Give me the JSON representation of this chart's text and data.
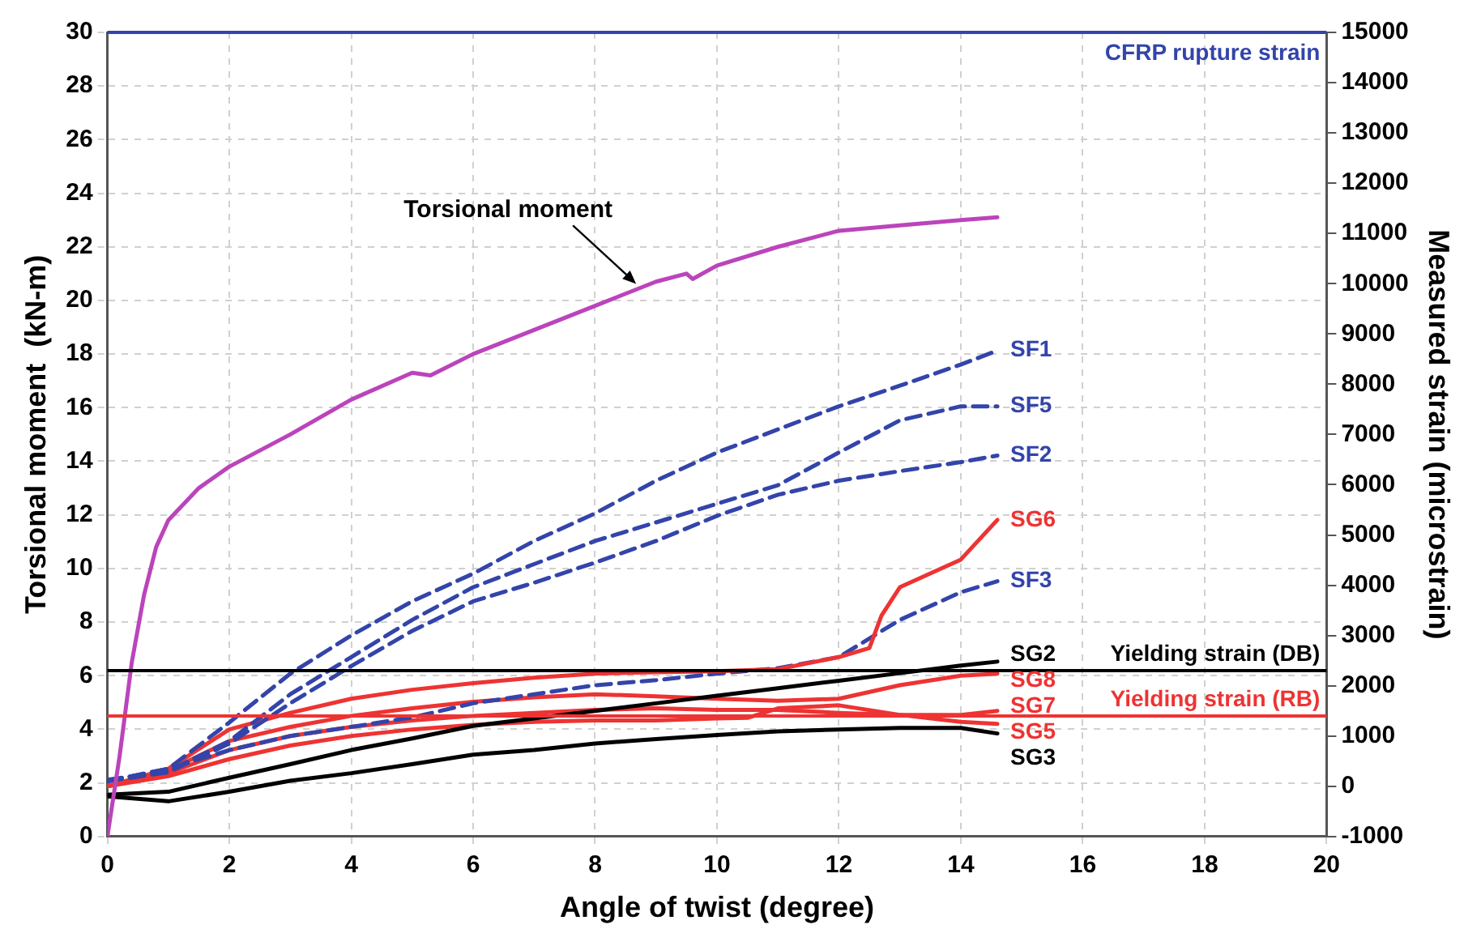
{
  "chart_data": {
    "type": "line",
    "xlabel": "Angle of twist (degree)",
    "ylabel": "Torsional moment  (kN-m)",
    "y2label": "Measured strain (microstrain)",
    "xlim": [
      0,
      20
    ],
    "xticks": [
      0,
      2,
      4,
      6,
      8,
      10,
      12,
      14,
      16,
      18,
      20
    ],
    "ylim": [
      0,
      30
    ],
    "yticks": [
      0,
      2,
      4,
      6,
      8,
      10,
      12,
      14,
      16,
      18,
      20,
      22,
      24,
      26,
      28,
      30
    ],
    "y2lim": [
      -1000,
      15000
    ],
    "y2ticks": [
      -1000,
      0,
      1000,
      2000,
      3000,
      4000,
      5000,
      6000,
      7000,
      8000,
      9000,
      10000,
      11000,
      12000,
      13000,
      14000,
      15000
    ],
    "grid": true,
    "legend": false,
    "marker": "none",
    "series": [
      {
        "color": "#bb44bb",
        "line_style": "solid",
        "x": [
          0,
          0.2,
          0.4,
          0.6,
          0.8,
          1,
          1.5,
          2,
          3,
          4,
          5,
          5.3,
          6,
          7,
          8,
          9,
          9.5,
          9.6,
          10,
          11,
          12,
          13,
          14,
          14.6
        ],
        "values": [
          0,
          3,
          6.5,
          9,
          10.8,
          11.8,
          13,
          13.8,
          15,
          16.3,
          17.3,
          17.2,
          18,
          18.9,
          19.8,
          20.7,
          21,
          20.8,
          21.3,
          22,
          22.6,
          22.8,
          23,
          23.1
        ]
      },
      {
        "name": "SF1",
        "color": "#3344aa",
        "line_style": "dashed",
        "axis": "y2",
        "x": [
          0,
          1,
          2,
          3,
          4,
          5,
          6,
          7,
          8,
          9,
          10,
          11,
          12,
          13,
          14,
          14.6
        ],
        "values": [
          100,
          350,
          1270,
          2240,
          3000,
          3680,
          4230,
          4880,
          5430,
          6080,
          6640,
          7100,
          7560,
          7970,
          8390,
          8670
        ]
      },
      {
        "name": "SF5",
        "color": "#3344aa",
        "line_style": "dashed",
        "axis": "y2",
        "x": [
          0,
          1,
          2,
          3,
          4,
          5,
          6,
          7,
          8,
          9,
          10,
          11,
          12,
          13,
          14,
          14.6
        ],
        "values": [
          130,
          300,
          900,
          1830,
          2570,
          3310,
          3960,
          4420,
          4880,
          5250,
          5620,
          5990,
          6640,
          7280,
          7560,
          7560
        ]
      },
      {
        "name": "SF2",
        "color": "#3344aa",
        "line_style": "dashed",
        "axis": "y2",
        "x": [
          0,
          1,
          2,
          3,
          4,
          5,
          6,
          7,
          8,
          9,
          10,
          11,
          12,
          13,
          14,
          14.6
        ],
        "values": [
          100,
          280,
          850,
          1650,
          2390,
          3090,
          3680,
          4050,
          4450,
          4880,
          5380,
          5800,
          6080,
          6270,
          6450,
          6580
        ]
      },
      {
        "name": "SG6",
        "color": "#ee3333",
        "line_style": "solid",
        "axis": "y2",
        "x": [
          0,
          1,
          2,
          3,
          4,
          5,
          6,
          7,
          8,
          9,
          10,
          11,
          12,
          12.5,
          12.7,
          13,
          14,
          14.6
        ],
        "values": [
          0,
          350,
          1130,
          1460,
          1740,
          1920,
          2050,
          2160,
          2240,
          2270,
          2290,
          2330,
          2570,
          2750,
          3400,
          3960,
          4510,
          5300
        ]
      },
      {
        "name": "SF3",
        "color": "#3344aa",
        "line_style": "dashed",
        "axis": "y2",
        "x": [
          0,
          1,
          2,
          3,
          4,
          5,
          6,
          7,
          8,
          9,
          10,
          11,
          12,
          13,
          14,
          14.6
        ],
        "values": [
          100,
          350,
          720,
          1000,
          1180,
          1370,
          1650,
          1830,
          2010,
          2110,
          2240,
          2350,
          2570,
          3310,
          3860,
          4080
        ]
      },
      {
        "name": "SG2",
        "color": "#000000",
        "line_style": "solid",
        "axis": "y2",
        "x": [
          0,
          1,
          2,
          3,
          4,
          5,
          6,
          7,
          8,
          9,
          10,
          11,
          12,
          13,
          14,
          14.6
        ],
        "values": [
          -170,
          -110,
          170,
          440,
          720,
          950,
          1200,
          1350,
          1500,
          1650,
          1800,
          1950,
          2100,
          2250,
          2400,
          2480
        ]
      },
      {
        "name": "SG8",
        "color": "#ee3333",
        "line_style": "solid",
        "axis": "y2",
        "x": [
          0,
          1,
          2,
          3,
          4,
          5,
          6,
          7,
          8,
          9,
          10,
          11,
          12,
          13,
          14,
          14.6
        ],
        "values": [
          0,
          310,
          900,
          1180,
          1400,
          1550,
          1680,
          1770,
          1830,
          1790,
          1740,
          1700,
          1740,
          2010,
          2200,
          2240
        ]
      },
      {
        "name": "SG7",
        "color": "#ee3333",
        "line_style": "solid",
        "axis": "y2",
        "x": [
          0,
          1,
          2,
          3,
          4,
          5,
          6,
          7,
          8,
          9,
          10,
          11,
          12,
          13,
          14,
          14.6
        ],
        "values": [
          0,
          260,
          720,
          1000,
          1180,
          1310,
          1400,
          1460,
          1520,
          1550,
          1520,
          1520,
          1460,
          1420,
          1420,
          1500
        ]
      },
      {
        "name": "SG5",
        "color": "#ee3333",
        "line_style": "solid",
        "axis": "y2",
        "x": [
          0,
          1,
          2,
          3,
          4,
          5,
          6,
          7,
          8,
          9,
          10,
          10.5,
          11,
          12,
          13,
          14,
          14.6
        ],
        "values": [
          0,
          200,
          540,
          810,
          1000,
          1130,
          1220,
          1280,
          1310,
          1310,
          1350,
          1360,
          1550,
          1610,
          1420,
          1280,
          1240
        ]
      },
      {
        "name": "SG3",
        "color": "#000000",
        "line_style": "solid",
        "axis": "y2",
        "x": [
          0,
          1,
          2,
          3,
          4,
          5,
          6,
          7,
          8,
          9,
          10,
          11,
          12,
          13,
          14,
          14.6
        ],
        "values": [
          -200,
          -300,
          -110,
          110,
          260,
          440,
          630,
          720,
          850,
          940,
          1020,
          1090,
          1130,
          1160,
          1160,
          1050
        ]
      }
    ],
    "ref_lines": [
      {
        "axis": "y2",
        "value": 15000,
        "label": "CFRP rupture strain",
        "color": "#3344aa"
      },
      {
        "axis": "y2",
        "value": 2300,
        "label": "Yielding strain (DB)",
        "color": "#000000"
      },
      {
        "axis": "y2",
        "value": 1400,
        "label": "Yielding strain (RB)",
        "color": "#ee3333"
      }
    ],
    "annotations": [
      {
        "text": "Torsional moment",
        "x": 8.7,
        "y": 20.5
      }
    ]
  }
}
